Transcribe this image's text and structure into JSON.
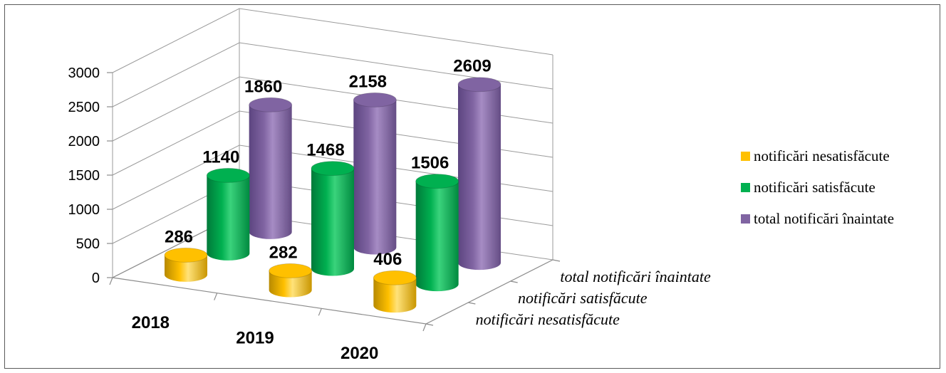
{
  "chart_data": {
    "type": "bar",
    "subtype": "3d-cylinder",
    "categories": [
      "2018",
      "2019",
      "2020"
    ],
    "series": [
      {
        "name": "notificări nesatisfăcute",
        "values": [
          286,
          282,
          406
        ],
        "color": "#FFC000"
      },
      {
        "name": "notificări satisfăcute",
        "values": [
          1140,
          1468,
          1506
        ],
        "color": "#00B050"
      },
      {
        "name": "total notificări înaintate",
        "values": [
          1860,
          2158,
          2609
        ],
        "color": "#8064A2"
      }
    ],
    "y_ticks": [
      "0",
      "500",
      "1000",
      "1500",
      "2000",
      "2500",
      "3000"
    ],
    "ylim": [
      0,
      3000
    ],
    "grid": true,
    "legend_position": "right"
  }
}
